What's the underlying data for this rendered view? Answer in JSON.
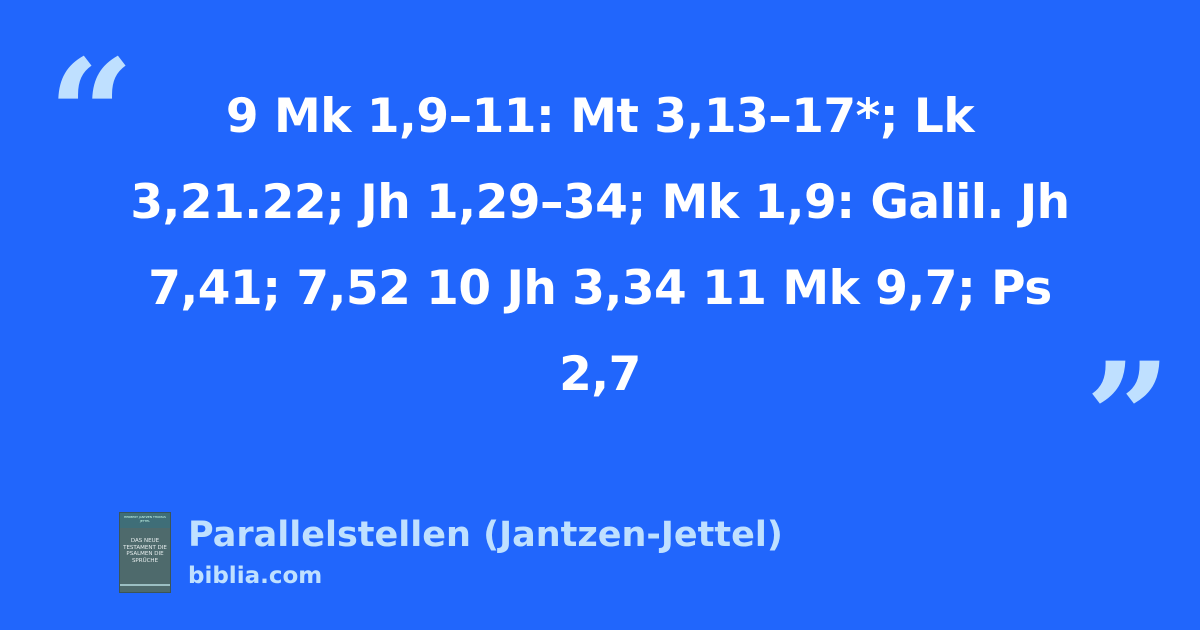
{
  "quote": {
    "open_mark": "“",
    "close_mark": "”",
    "text": "9 Mk 1,9–11: Mt 3,13–17*; Lk 3,21.22; Jh 1,29–34; Mk 1,9: Galil. Jh 7,41; 7,52 10 Jh 3,34 11 Mk 9,7; Ps 2,7"
  },
  "source": {
    "title": "Parallelstellen (Jantzen-Jettel)",
    "site": "biblia.com",
    "cover": {
      "authors": "HERBERT JANTZEN THOMAS JETTEL",
      "title": "DAS NEUE TESTAMENT DIE PSALMEN DIE SPRÜCHE"
    }
  },
  "colors": {
    "background": "#2166fc",
    "accent": "#bfe0ff",
    "text": "#ffffff"
  }
}
